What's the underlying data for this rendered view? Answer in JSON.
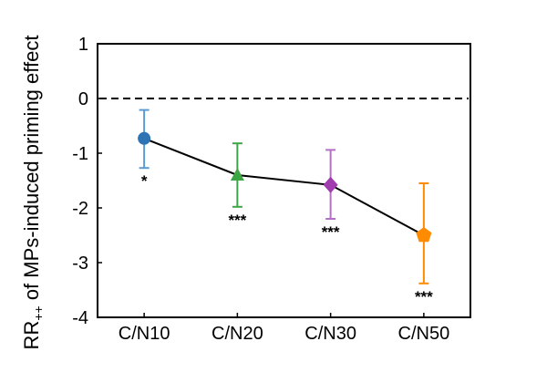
{
  "chart_data": {
    "type": "scatter",
    "title": "",
    "xlabel": "",
    "ylabel": "RR++ of MPs-induced priming effect",
    "ylabel_base": "RR",
    "ylabel_subscript": "++",
    "ylabel_rest": " of MPs-induced priming effect",
    "categories": [
      "C/N10",
      "C/N20",
      "C/N30",
      "C/N50"
    ],
    "y_ticks": [
      1,
      0,
      -1,
      -2,
      -3,
      -4
    ],
    "ylim": [
      -4,
      1
    ],
    "grid": false,
    "legend": false,
    "reference_line": {
      "y": 0,
      "style": "dashed",
      "color": "#000000"
    },
    "series": [
      {
        "name": "MPs-induced priming effect",
        "line_color": "#000000",
        "points": [
          {
            "category": "C/N10",
            "mean": -0.73,
            "ci_low": -1.27,
            "ci_high": -0.21,
            "significance": "*",
            "marker": "circle",
            "marker_color": "#2e74b5",
            "errorbar_color": "#5b9bd5"
          },
          {
            "category": "C/N20",
            "mean": -1.4,
            "ci_low": -1.98,
            "ci_high": -0.82,
            "significance": "***",
            "marker": "triangle",
            "marker_color": "#3da644",
            "errorbar_color": "#3da644"
          },
          {
            "category": "C/N30",
            "mean": -1.58,
            "ci_low": -2.2,
            "ci_high": -0.94,
            "significance": "***",
            "marker": "diamond",
            "marker_color": "#a13dae",
            "errorbar_color": "#b470c6"
          },
          {
            "category": "C/N50",
            "mean": -2.5,
            "ci_low": -3.38,
            "ci_high": -1.55,
            "significance": "***",
            "marker": "pentagon",
            "marker_color": "#ff8c00",
            "errorbar_color": "#ff8c00"
          }
        ]
      }
    ]
  },
  "colors": {
    "background": "#ffffff",
    "axis": "#000000",
    "text": "#000000"
  }
}
